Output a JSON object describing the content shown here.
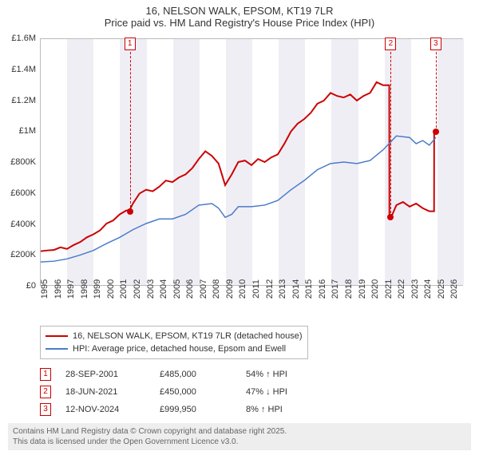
{
  "title": {
    "line1": "16, NELSON WALK, EPSOM, KT19 7LR",
    "line2": "Price paid vs. HM Land Registry's House Price Index (HPI)",
    "fontsize": 13,
    "color": "#333333"
  },
  "chart": {
    "type": "line",
    "plot_bg": "#ffffff",
    "band_bg": "#f0eef5",
    "border_color": "#bbbbbb",
    "xlim": [
      1995,
      2027
    ],
    "ylim": [
      0,
      1600000
    ],
    "y_ticks": [
      {
        "v": 0,
        "label": "£0"
      },
      {
        "v": 200000,
        "label": "£200K"
      },
      {
        "v": 400000,
        "label": "£400K"
      },
      {
        "v": 600000,
        "label": "£600K"
      },
      {
        "v": 800000,
        "label": "£800K"
      },
      {
        "v": 1000000,
        "label": "£1M"
      },
      {
        "v": 1200000,
        "label": "£1.2M"
      },
      {
        "v": 1400000,
        "label": "£1.4M"
      },
      {
        "v": 1600000,
        "label": "£1.6M"
      }
    ],
    "x_ticks": [
      {
        "v": 1995,
        "label": "1995"
      },
      {
        "v": 1996,
        "label": "1996"
      },
      {
        "v": 1997,
        "label": "1997"
      },
      {
        "v": 1998,
        "label": "1998"
      },
      {
        "v": 1999,
        "label": "1999"
      },
      {
        "v": 2000,
        "label": "2000"
      },
      {
        "v": 2001,
        "label": "2001"
      },
      {
        "v": 2002,
        "label": "2002"
      },
      {
        "v": 2003,
        "label": "2003"
      },
      {
        "v": 2004,
        "label": "2004"
      },
      {
        "v": 2005,
        "label": "2005"
      },
      {
        "v": 2006,
        "label": "2006"
      },
      {
        "v": 2007,
        "label": "2007"
      },
      {
        "v": 2008,
        "label": "2008"
      },
      {
        "v": 2009,
        "label": "2009"
      },
      {
        "v": 2010,
        "label": "2010"
      },
      {
        "v": 2011,
        "label": "2011"
      },
      {
        "v": 2012,
        "label": "2012"
      },
      {
        "v": 2013,
        "label": "2013"
      },
      {
        "v": 2014,
        "label": "2014"
      },
      {
        "v": 2015,
        "label": "2015"
      },
      {
        "v": 2016,
        "label": "2016"
      },
      {
        "v": 2017,
        "label": "2017"
      },
      {
        "v": 2018,
        "label": "2018"
      },
      {
        "v": 2019,
        "label": "2019"
      },
      {
        "v": 2020,
        "label": "2020"
      },
      {
        "v": 2021,
        "label": "2021"
      },
      {
        "v": 2022,
        "label": "2022"
      },
      {
        "v": 2023,
        "label": "2023"
      },
      {
        "v": 2024,
        "label": "2024"
      },
      {
        "v": 2025,
        "label": "2025"
      },
      {
        "v": 2026,
        "label": "2026"
      }
    ],
    "alt_bands_start": 1995,
    "alt_bands_width": 2,
    "tick_fontsize": 11,
    "series": [
      {
        "name": "price_paid",
        "label": "16, NELSON WALK, EPSOM, KT19 7LR (detached house)",
        "color": "#cc0000",
        "line_width": 2,
        "points": [
          [
            1995.0,
            220000
          ],
          [
            1995.5,
            225000
          ],
          [
            1996.0,
            228000
          ],
          [
            1996.5,
            245000
          ],
          [
            1997.0,
            235000
          ],
          [
            1997.5,
            260000
          ],
          [
            1998.0,
            280000
          ],
          [
            1998.5,
            310000
          ],
          [
            1999.0,
            330000
          ],
          [
            1999.5,
            355000
          ],
          [
            2000.0,
            400000
          ],
          [
            2000.5,
            420000
          ],
          [
            2001.0,
            460000
          ],
          [
            2001.5,
            485000
          ],
          [
            2001.74,
            485000
          ],
          [
            2002.0,
            530000
          ],
          [
            2002.5,
            595000
          ],
          [
            2003.0,
            620000
          ],
          [
            2003.5,
            610000
          ],
          [
            2004.0,
            640000
          ],
          [
            2004.5,
            680000
          ],
          [
            2005.0,
            670000
          ],
          [
            2005.5,
            700000
          ],
          [
            2006.0,
            720000
          ],
          [
            2006.5,
            760000
          ],
          [
            2007.0,
            820000
          ],
          [
            2007.5,
            870000
          ],
          [
            2008.0,
            840000
          ],
          [
            2008.5,
            790000
          ],
          [
            2009.0,
            650000
          ],
          [
            2009.5,
            720000
          ],
          [
            2010.0,
            800000
          ],
          [
            2010.5,
            810000
          ],
          [
            2011.0,
            780000
          ],
          [
            2011.5,
            820000
          ],
          [
            2012.0,
            800000
          ],
          [
            2012.5,
            830000
          ],
          [
            2013.0,
            850000
          ],
          [
            2013.5,
            920000
          ],
          [
            2014.0,
            1000000
          ],
          [
            2014.5,
            1050000
          ],
          [
            2015.0,
            1080000
          ],
          [
            2015.5,
            1120000
          ],
          [
            2016.0,
            1180000
          ],
          [
            2016.5,
            1200000
          ],
          [
            2017.0,
            1250000
          ],
          [
            2017.5,
            1230000
          ],
          [
            2018.0,
            1220000
          ],
          [
            2018.5,
            1240000
          ],
          [
            2019.0,
            1200000
          ],
          [
            2019.5,
            1230000
          ],
          [
            2020.0,
            1250000
          ],
          [
            2020.5,
            1320000
          ],
          [
            2021.0,
            1300000
          ],
          [
            2021.46,
            1300000
          ],
          [
            2021.47,
            450000
          ],
          [
            2021.7,
            460000
          ],
          [
            2022.0,
            520000
          ],
          [
            2022.5,
            540000
          ],
          [
            2023.0,
            510000
          ],
          [
            2023.5,
            530000
          ],
          [
            2024.0,
            500000
          ],
          [
            2024.5,
            480000
          ],
          [
            2024.86,
            480000
          ],
          [
            2024.87,
            999950
          ],
          [
            2025.0,
            1000000
          ]
        ]
      },
      {
        "name": "hpi",
        "label": "HPI: Average price, detached house, Epsom and Ewell",
        "color": "#4a7cc9",
        "line_width": 1.5,
        "points": [
          [
            1995.0,
            150000
          ],
          [
            1996.0,
            155000
          ],
          [
            1997.0,
            170000
          ],
          [
            1998.0,
            195000
          ],
          [
            1999.0,
            225000
          ],
          [
            2000.0,
            270000
          ],
          [
            2001.0,
            310000
          ],
          [
            2002.0,
            360000
          ],
          [
            2003.0,
            400000
          ],
          [
            2004.0,
            430000
          ],
          [
            2005.0,
            430000
          ],
          [
            2006.0,
            460000
          ],
          [
            2007.0,
            520000
          ],
          [
            2008.0,
            530000
          ],
          [
            2008.5,
            500000
          ],
          [
            2009.0,
            440000
          ],
          [
            2009.5,
            460000
          ],
          [
            2010.0,
            510000
          ],
          [
            2011.0,
            510000
          ],
          [
            2012.0,
            520000
          ],
          [
            2013.0,
            550000
          ],
          [
            2014.0,
            620000
          ],
          [
            2015.0,
            680000
          ],
          [
            2016.0,
            750000
          ],
          [
            2017.0,
            790000
          ],
          [
            2018.0,
            800000
          ],
          [
            2019.0,
            790000
          ],
          [
            2020.0,
            810000
          ],
          [
            2021.0,
            880000
          ],
          [
            2022.0,
            970000
          ],
          [
            2023.0,
            960000
          ],
          [
            2023.5,
            920000
          ],
          [
            2024.0,
            940000
          ],
          [
            2024.5,
            910000
          ],
          [
            2025.0,
            960000
          ]
        ]
      }
    ],
    "markers": [
      {
        "n": "1",
        "x": 2001.74,
        "y": 485000,
        "color": "#cc0000"
      },
      {
        "n": "2",
        "x": 2021.47,
        "y": 450000,
        "color": "#cc0000"
      },
      {
        "n": "3",
        "x": 2024.87,
        "y": 999950,
        "color": "#cc0000"
      }
    ]
  },
  "legend": {
    "border_color": "#bbbbbb",
    "items": [
      {
        "swatch": "#cc0000",
        "label": "16, NELSON WALK, EPSOM, KT19 7LR (detached house)"
      },
      {
        "swatch": "#4a7cc9",
        "label": "HPI: Average price, detached house, Epsom and Ewell"
      }
    ]
  },
  "events": [
    {
      "n": "1",
      "color": "#cc0000",
      "date": "28-SEP-2001",
      "price": "£485,000",
      "pct": "54% ↑ HPI"
    },
    {
      "n": "2",
      "color": "#cc0000",
      "date": "18-JUN-2021",
      "price": "£450,000",
      "pct": "47% ↓ HPI"
    },
    {
      "n": "3",
      "color": "#cc0000",
      "date": "12-NOV-2024",
      "price": "£999,950",
      "pct": "8% ↑ HPI"
    }
  ],
  "footer": {
    "line1": "Contains HM Land Registry data © Crown copyright and database right 2025.",
    "line2": "This data is licensed under the Open Government Licence v3.0.",
    "bg": "#eeeeee",
    "color": "#666666"
  }
}
